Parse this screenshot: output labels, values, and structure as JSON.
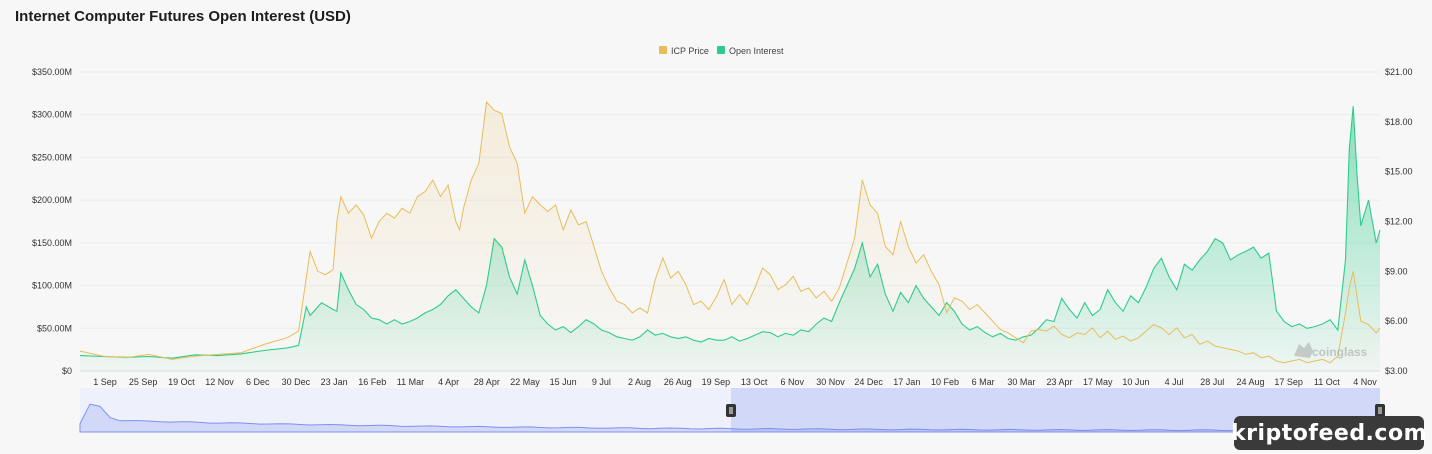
{
  "title": "Internet Computer Futures Open Interest (USD)",
  "watermark": "kriptofeed.com",
  "brand_mark": "coinglass",
  "colors": {
    "price": "#E8BD5A",
    "oi": "#2ECC8C",
    "navigator": "#7f90ee"
  },
  "chart_data": {
    "type": "area",
    "legend": {
      "placement": "top-center",
      "items": [
        "ICP Price",
        "Open Interest"
      ]
    },
    "x_ticks": [
      "1 Sep",
      "25 Sep",
      "19 Oct",
      "12 Nov",
      "6 Dec",
      "30 Dec",
      "23 Jan",
      "16 Feb",
      "11 Mar",
      "4 Apr",
      "28 Apr",
      "22 May",
      "15 Jun",
      "9 Jul",
      "2 Aug",
      "26 Aug",
      "19 Sep",
      "13 Oct",
      "6 Nov",
      "30 Nov",
      "24 Dec",
      "17 Jan",
      "10 Feb",
      "6 Mar",
      "30 Mar",
      "23 Apr",
      "17 May",
      "10 Jun",
      "4 Jul",
      "28 Jul",
      "24 Aug",
      "17 Sep",
      "11 Oct",
      "4 Nov"
    ],
    "y_left": {
      "ticks": [
        "$0",
        "$50.00M",
        "$100.00M",
        "$150.00M",
        "$200.00M",
        "$250.00M",
        "$300.00M",
        "$350.00M"
      ],
      "range": [
        0,
        350
      ]
    },
    "y_right": {
      "ticks": [
        "$3.00",
        "$6.00",
        "$9.00",
        "$12.00",
        "$15.00",
        "$18.00",
        "$21.00"
      ],
      "range": [
        3,
        21
      ]
    },
    "grid": true,
    "series": [
      {
        "name": "Open Interest",
        "axis": "left",
        "unit": "USD M",
        "points": [
          [
            0,
            18
          ],
          [
            6,
            17
          ],
          [
            12,
            16
          ],
          [
            18,
            17
          ],
          [
            24,
            15
          ],
          [
            30,
            19
          ],
          [
            36,
            18
          ],
          [
            42,
            20
          ],
          [
            48,
            24
          ],
          [
            54,
            27
          ],
          [
            57,
            30
          ],
          [
            59,
            75
          ],
          [
            60,
            65
          ],
          [
            63,
            80
          ],
          [
            66,
            72
          ],
          [
            67,
            70
          ],
          [
            68,
            115
          ],
          [
            70,
            95
          ],
          [
            72,
            78
          ],
          [
            74,
            72
          ],
          [
            76,
            62
          ],
          [
            78,
            60
          ],
          [
            80,
            55
          ],
          [
            82,
            60
          ],
          [
            84,
            55
          ],
          [
            86,
            58
          ],
          [
            88,
            62
          ],
          [
            90,
            68
          ],
          [
            92,
            72
          ],
          [
            94,
            78
          ],
          [
            96,
            88
          ],
          [
            98,
            95
          ],
          [
            100,
            85
          ],
          [
            102,
            75
          ],
          [
            104,
            68
          ],
          [
            106,
            100
          ],
          [
            108,
            155
          ],
          [
            110,
            145
          ],
          [
            112,
            110
          ],
          [
            114,
            90
          ],
          [
            116,
            130
          ],
          [
            118,
            100
          ],
          [
            120,
            65
          ],
          [
            122,
            55
          ],
          [
            124,
            48
          ],
          [
            126,
            52
          ],
          [
            128,
            45
          ],
          [
            130,
            52
          ],
          [
            132,
            60
          ],
          [
            134,
            55
          ],
          [
            136,
            48
          ],
          [
            138,
            45
          ],
          [
            140,
            40
          ],
          [
            142,
            38
          ],
          [
            144,
            36
          ],
          [
            146,
            40
          ],
          [
            148,
            48
          ],
          [
            150,
            42
          ],
          [
            152,
            44
          ],
          [
            154,
            40
          ],
          [
            156,
            38
          ],
          [
            158,
            40
          ],
          [
            160,
            36
          ],
          [
            162,
            34
          ],
          [
            164,
            38
          ],
          [
            166,
            36
          ],
          [
            168,
            36
          ],
          [
            170,
            40
          ],
          [
            172,
            35
          ],
          [
            174,
            38
          ],
          [
            176,
            42
          ],
          [
            178,
            46
          ],
          [
            180,
            45
          ],
          [
            182,
            40
          ],
          [
            184,
            44
          ],
          [
            186,
            42
          ],
          [
            188,
            48
          ],
          [
            190,
            46
          ],
          [
            192,
            55
          ],
          [
            194,
            62
          ],
          [
            196,
            58
          ],
          [
            198,
            80
          ],
          [
            200,
            100
          ],
          [
            202,
            120
          ],
          [
            204,
            150
          ],
          [
            206,
            110
          ],
          [
            208,
            125
          ],
          [
            210,
            90
          ],
          [
            212,
            70
          ],
          [
            214,
            92
          ],
          [
            216,
            80
          ],
          [
            218,
            100
          ],
          [
            220,
            85
          ],
          [
            222,
            75
          ],
          [
            224,
            65
          ],
          [
            226,
            80
          ],
          [
            228,
            70
          ],
          [
            230,
            55
          ],
          [
            232,
            48
          ],
          [
            234,
            52
          ],
          [
            236,
            45
          ],
          [
            238,
            40
          ],
          [
            240,
            44
          ],
          [
            242,
            38
          ],
          [
            244,
            36
          ],
          [
            246,
            40
          ],
          [
            248,
            42
          ],
          [
            250,
            50
          ],
          [
            252,
            60
          ],
          [
            254,
            58
          ],
          [
            256,
            85
          ],
          [
            258,
            72
          ],
          [
            260,
            62
          ],
          [
            262,
            80
          ],
          [
            264,
            65
          ],
          [
            266,
            72
          ],
          [
            268,
            95
          ],
          [
            270,
            80
          ],
          [
            272,
            70
          ],
          [
            274,
            88
          ],
          [
            276,
            80
          ],
          [
            278,
            98
          ],
          [
            280,
            120
          ],
          [
            282,
            132
          ],
          [
            284,
            110
          ],
          [
            286,
            95
          ],
          [
            288,
            125
          ],
          [
            290,
            118
          ],
          [
            292,
            130
          ],
          [
            294,
            140
          ],
          [
            296,
            155
          ],
          [
            298,
            150
          ],
          [
            300,
            130
          ],
          [
            302,
            136
          ],
          [
            304,
            140
          ],
          [
            306,
            145
          ],
          [
            308,
            132
          ],
          [
            310,
            138
          ],
          [
            312,
            70
          ],
          [
            314,
            58
          ],
          [
            316,
            52
          ],
          [
            318,
            55
          ],
          [
            320,
            50
          ],
          [
            322,
            52
          ],
          [
            324,
            55
          ],
          [
            326,
            60
          ],
          [
            328,
            48
          ],
          [
            330,
            130
          ],
          [
            331,
            260
          ],
          [
            332,
            310
          ],
          [
            333,
            230
          ],
          [
            334,
            170
          ],
          [
            336,
            200
          ],
          [
            338,
            150
          ],
          [
            339,
            165
          ]
        ]
      },
      {
        "name": "ICP Price",
        "axis": "right",
        "unit": "USD",
        "points": [
          [
            0,
            4.2
          ],
          [
            6,
            3.9
          ],
          [
            12,
            3.8
          ],
          [
            18,
            4.0
          ],
          [
            24,
            3.7
          ],
          [
            30,
            3.9
          ],
          [
            36,
            4.0
          ],
          [
            42,
            4.1
          ],
          [
            48,
            4.6
          ],
          [
            54,
            5.0
          ],
          [
            57,
            5.4
          ],
          [
            58,
            7.0
          ],
          [
            60,
            10.2
          ],
          [
            62,
            9.0
          ],
          [
            64,
            8.8
          ],
          [
            66,
            9.1
          ],
          [
            67,
            12.0
          ],
          [
            68,
            13.5
          ],
          [
            70,
            12.5
          ],
          [
            72,
            13.0
          ],
          [
            74,
            12.4
          ],
          [
            76,
            11.0
          ],
          [
            78,
            12.0
          ],
          [
            80,
            12.5
          ],
          [
            82,
            12.2
          ],
          [
            84,
            12.8
          ],
          [
            86,
            12.5
          ],
          [
            88,
            13.5
          ],
          [
            90,
            13.8
          ],
          [
            92,
            14.5
          ],
          [
            94,
            13.5
          ],
          [
            96,
            14.2
          ],
          [
            98,
            12.0
          ],
          [
            99,
            11.5
          ],
          [
            100,
            12.8
          ],
          [
            102,
            14.5
          ],
          [
            104,
            15.5
          ],
          [
            106,
            19.2
          ],
          [
            108,
            18.7
          ],
          [
            110,
            18.5
          ],
          [
            112,
            16.5
          ],
          [
            114,
            15.5
          ],
          [
            116,
            12.5
          ],
          [
            118,
            13.5
          ],
          [
            120,
            13.0
          ],
          [
            122,
            12.6
          ],
          [
            124,
            13.0
          ],
          [
            126,
            11.5
          ],
          [
            128,
            12.7
          ],
          [
            130,
            11.8
          ],
          [
            132,
            12.0
          ],
          [
            134,
            10.5
          ],
          [
            136,
            9.0
          ],
          [
            138,
            8.0
          ],
          [
            140,
            7.2
          ],
          [
            142,
            7.0
          ],
          [
            144,
            6.5
          ],
          [
            146,
            6.8
          ],
          [
            148,
            6.5
          ],
          [
            150,
            8.5
          ],
          [
            152,
            9.8
          ],
          [
            154,
            8.6
          ],
          [
            156,
            9.0
          ],
          [
            158,
            8.2
          ],
          [
            160,
            7.0
          ],
          [
            162,
            7.2
          ],
          [
            164,
            6.7
          ],
          [
            166,
            7.5
          ],
          [
            168,
            8.5
          ],
          [
            170,
            7.0
          ],
          [
            172,
            7.6
          ],
          [
            174,
            7.0
          ],
          [
            176,
            8.0
          ],
          [
            178,
            9.2
          ],
          [
            180,
            8.8
          ],
          [
            182,
            7.9
          ],
          [
            184,
            8.2
          ],
          [
            186,
            8.7
          ],
          [
            188,
            7.8
          ],
          [
            190,
            8.0
          ],
          [
            192,
            7.4
          ],
          [
            194,
            7.8
          ],
          [
            196,
            7.2
          ],
          [
            198,
            8.0
          ],
          [
            200,
            9.5
          ],
          [
            202,
            11.0
          ],
          [
            204,
            14.5
          ],
          [
            206,
            13.0
          ],
          [
            208,
            12.5
          ],
          [
            210,
            10.5
          ],
          [
            212,
            10.0
          ],
          [
            214,
            12.0
          ],
          [
            216,
            10.5
          ],
          [
            218,
            9.5
          ],
          [
            220,
            10.0
          ],
          [
            222,
            9.0
          ],
          [
            224,
            8.2
          ],
          [
            226,
            6.5
          ],
          [
            228,
            7.4
          ],
          [
            230,
            7.2
          ],
          [
            232,
            6.7
          ],
          [
            234,
            7.0
          ],
          [
            236,
            6.5
          ],
          [
            238,
            6.0
          ],
          [
            240,
            5.5
          ],
          [
            242,
            5.3
          ],
          [
            244,
            5.0
          ],
          [
            246,
            4.7
          ],
          [
            248,
            5.4
          ],
          [
            250,
            5.5
          ],
          [
            252,
            5.4
          ],
          [
            254,
            5.7
          ],
          [
            256,
            5.2
          ],
          [
            258,
            5.0
          ],
          [
            260,
            5.3
          ],
          [
            262,
            5.2
          ],
          [
            264,
            5.6
          ],
          [
            266,
            5.0
          ],
          [
            268,
            5.4
          ],
          [
            270,
            4.9
          ],
          [
            272,
            5.1
          ],
          [
            274,
            4.8
          ],
          [
            276,
            5.0
          ],
          [
            278,
            5.4
          ],
          [
            280,
            5.8
          ],
          [
            282,
            5.6
          ],
          [
            284,
            5.2
          ],
          [
            286,
            5.6
          ],
          [
            288,
            5.0
          ],
          [
            290,
            5.2
          ],
          [
            292,
            4.6
          ],
          [
            294,
            4.8
          ],
          [
            296,
            4.5
          ],
          [
            298,
            4.4
          ],
          [
            300,
            4.3
          ],
          [
            302,
            4.2
          ],
          [
            304,
            4.0
          ],
          [
            306,
            4.1
          ],
          [
            308,
            3.8
          ],
          [
            310,
            3.9
          ],
          [
            312,
            3.6
          ],
          [
            314,
            3.5
          ],
          [
            316,
            3.6
          ],
          [
            318,
            3.7
          ],
          [
            320,
            3.5
          ],
          [
            322,
            3.6
          ],
          [
            324,
            3.7
          ],
          [
            326,
            3.5
          ],
          [
            328,
            3.9
          ],
          [
            330,
            6.5
          ],
          [
            331,
            8.0
          ],
          [
            332,
            9.0
          ],
          [
            333,
            7.5
          ],
          [
            334,
            6.0
          ],
          [
            336,
            5.8
          ],
          [
            338,
            5.3
          ],
          [
            339,
            5.6
          ]
        ]
      }
    ]
  }
}
